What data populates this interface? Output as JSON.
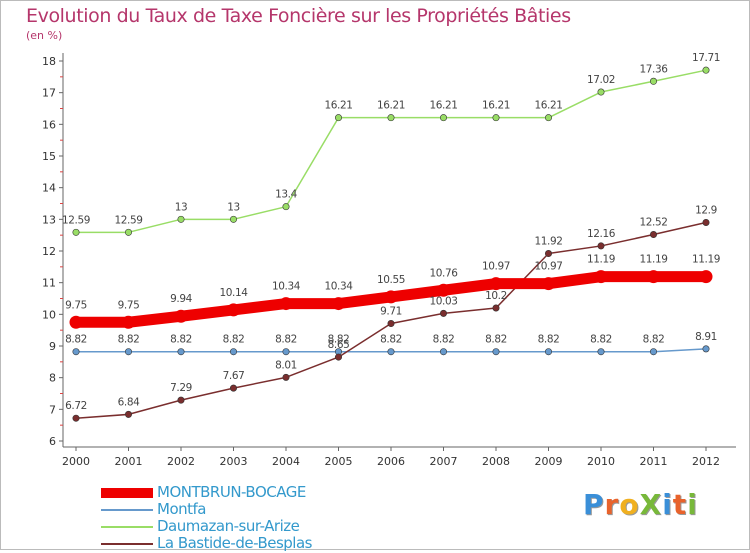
{
  "title": "Evolution du Taux de Taxe Foncière sur les Propriétés Bâties",
  "unit": "(en %)",
  "logo": {
    "text": "ProXiti",
    "letters": [
      "P",
      "r",
      "o",
      "X",
      "i",
      "t",
      "i"
    ],
    "colors": [
      "#3a8fd8",
      "#e8632c",
      "#f0b020",
      "#78b83a",
      "#3a8fd8",
      "#e8632c",
      "#78b83a"
    ]
  },
  "chart_data": {
    "type": "line",
    "title": "Evolution du Taux de Taxe Foncière sur les Propriétés Bâties",
    "ylabel": "(en %)",
    "xlabel": "",
    "x": [
      "2000",
      "2001",
      "2002",
      "2003",
      "2004",
      "2005",
      "2006",
      "2007",
      "2008",
      "2009",
      "2010",
      "2011",
      "2012"
    ],
    "ylim": [
      6,
      18
    ],
    "yticks": [
      6,
      7,
      8,
      9,
      10,
      11,
      12,
      13,
      14,
      15,
      16,
      17,
      18
    ],
    "series": [
      {
        "name": "MONTBRUN-BOCAGE",
        "color": "#ee0000",
        "values": [
          9.75,
          9.75,
          9.94,
          10.14,
          10.34,
          10.34,
          10.55,
          10.76,
          10.97,
          10.97,
          11.19,
          11.19,
          11.19
        ],
        "labels": [
          "9.75",
          "9.75",
          "9.94",
          "10.14",
          "10.34",
          "10.34",
          "10.55",
          "10.76",
          "10.97",
          "10.97",
          "11.19",
          "11.19",
          "11.19"
        ]
      },
      {
        "name": "Montfa",
        "color": "#6699cc",
        "values": [
          8.82,
          8.82,
          8.82,
          8.82,
          8.82,
          8.82,
          8.82,
          8.82,
          8.82,
          8.82,
          8.82,
          8.82,
          8.91
        ],
        "labels": [
          "8.82",
          "8.82",
          "8.82",
          "8.82",
          "8.82",
          "8.82",
          "8.82",
          "8.82",
          "8.82",
          "8.82",
          "8.82",
          "8.82",
          "8.91"
        ]
      },
      {
        "name": "Daumazan-sur-Arize",
        "color": "#99dd66",
        "values": [
          12.59,
          12.59,
          13,
          13,
          13.4,
          16.21,
          16.21,
          16.21,
          16.21,
          16.21,
          17.02,
          17.36,
          17.71
        ],
        "labels": [
          "12.59",
          "12.59",
          "13",
          "13",
          "13.4",
          "16.21",
          "16.21",
          "16.21",
          "16.21",
          "16.21",
          "17.02",
          "17.36",
          "17.71"
        ]
      },
      {
        "name": "La Bastide-de-Besplas",
        "color": "#7a2e2e",
        "values": [
          6.72,
          6.84,
          7.29,
          7.67,
          8.01,
          8.65,
          9.71,
          10.03,
          10.2,
          11.92,
          12.16,
          12.52,
          12.9
        ],
        "labels": [
          "6.72",
          "6.84",
          "7.29",
          "7.67",
          "8.01",
          "8.65",
          "9.71",
          "10.03",
          "10.2",
          "11.92",
          "12.16",
          "12.52",
          "12.9"
        ]
      }
    ],
    "legend": "bottom-left",
    "grid": false
  }
}
